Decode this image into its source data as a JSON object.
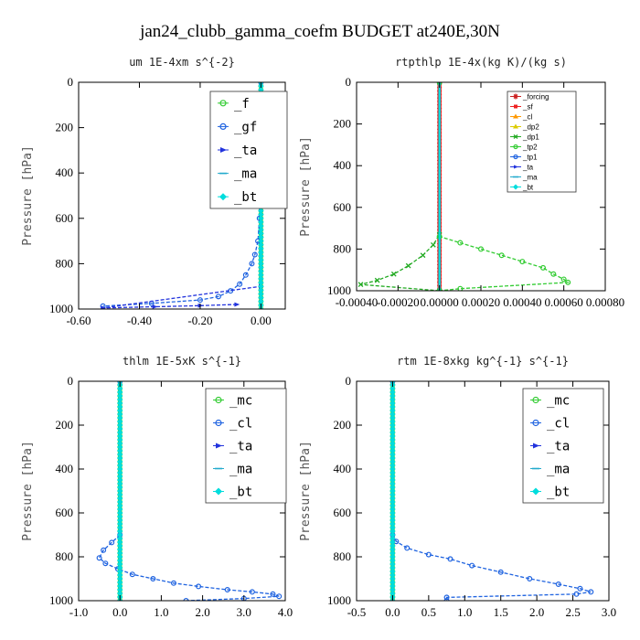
{
  "figure": {
    "title": "jan24_clubb_gamma_coefm  BUDGET at240E,30N"
  },
  "chart_data": [
    {
      "type": "line",
      "title": "um  1E-4xm s^{-2}",
      "ylabel": "Pressure [hPa]",
      "xlim": [
        -0.6,
        0.08
      ],
      "ylim": [
        1000,
        0
      ],
      "xticks": [
        -0.6,
        -0.4,
        -0.2,
        0.0
      ],
      "xtick_labels": [
        "-0.60",
        "-0.40",
        "-0.20",
        "0.00"
      ],
      "yticks": [
        0,
        200,
        400,
        600,
        800,
        1000
      ],
      "legend_position": "top-right",
      "legend_size": "large",
      "series": [
        {
          "name": "_f",
          "color": "#33cc33",
          "marker": "circle",
          "x": [
            0,
            0,
            0,
            0,
            0,
            0,
            0,
            0,
            0,
            0,
            0
          ],
          "y": [
            0,
            100,
            200,
            300,
            400,
            500,
            600,
            700,
            800,
            900,
            1000
          ]
        },
        {
          "name": "_gf",
          "color": "#1f63e0",
          "marker": "circle",
          "x": [
            0,
            -0.005,
            -0.01,
            -0.02,
            -0.03,
            -0.05,
            -0.07,
            -0.1,
            -0.14,
            -0.2,
            -0.36,
            -0.52
          ],
          "y": [
            0,
            600,
            700,
            760,
            800,
            850,
            890,
            920,
            945,
            960,
            975,
            987
          ]
        },
        {
          "name": "_ta",
          "color": "#2233dd",
          "marker": "arrow",
          "x": [
            0,
            0,
            -0.52,
            -0.35,
            -0.2,
            -0.08
          ],
          "y": [
            0,
            900,
            995,
            990,
            985,
            980
          ]
        },
        {
          "name": "_ma",
          "color": "#22aacc",
          "marker": "dash",
          "x": [
            0,
            0
          ],
          "y": [
            0,
            1000
          ]
        },
        {
          "name": "_bt",
          "color": "#00dddd",
          "marker": "diamond",
          "x": [
            0,
            0,
            0,
            0,
            0,
            0,
            0,
            0,
            0,
            0,
            0
          ],
          "y": [
            0,
            100,
            200,
            300,
            400,
            500,
            600,
            700,
            800,
            900,
            1000
          ]
        }
      ]
    },
    {
      "type": "line",
      "title": "rtpthlp  1E-4x(kg K)/(kg s)",
      "ylabel": "Pressure [hPa]",
      "xlim": [
        -0.0004,
        0.0008
      ],
      "ylim": [
        1000,
        0
      ],
      "xticks": [
        -0.0004,
        -0.0002,
        0.0,
        0.0002,
        0.0004,
        0.0006,
        0.0008
      ],
      "xtick_labels": [
        "-0.00040",
        "-0.00020",
        "0.00000",
        "0.00020",
        "0.00040",
        "0.00060",
        "0.00080"
      ],
      "yticks": [
        0,
        200,
        400,
        600,
        800,
        1000
      ],
      "legend_position": "top-right",
      "legend_size": "small",
      "series": [
        {
          "name": "_forcing",
          "color": "#cc2222",
          "marker": "star",
          "x": [
            0,
            0,
            0,
            0,
            0,
            0,
            0,
            0,
            0,
            0,
            0
          ],
          "y": [
            0,
            100,
            200,
            300,
            400,
            500,
            600,
            700,
            800,
            900,
            1000
          ]
        },
        {
          "name": "_sf",
          "color": "#ee2222",
          "marker": "square",
          "x": [
            0,
            0,
            0,
            0,
            0,
            0,
            0,
            0,
            0,
            0,
            0
          ],
          "y": [
            0,
            100,
            200,
            300,
            400,
            500,
            600,
            700,
            800,
            900,
            1000
          ]
        },
        {
          "name": "_cl",
          "color": "#ff9900",
          "marker": "triangle",
          "x": [
            0,
            0
          ],
          "y": [
            0,
            1000
          ]
        },
        {
          "name": "_dp2",
          "color": "#ddcc00",
          "marker": "triangle",
          "x": [
            0,
            0
          ],
          "y": [
            0,
            1000
          ]
        },
        {
          "name": "_dp1",
          "color": "#22aa22",
          "marker": "cross",
          "x": [
            0,
            0,
            -3e-05,
            -8e-05,
            -0.00015,
            -0.00022,
            -0.0003,
            -0.00038,
            0.0
          ],
          "y": [
            0,
            730,
            780,
            830,
            880,
            920,
            950,
            970,
            1000
          ]
        },
        {
          "name": "_tp2",
          "color": "#33cc33",
          "marker": "circle",
          "x": [
            0,
            0,
            0.0001,
            0.0002,
            0.0003,
            0.0004,
            0.0005,
            0.00055,
            0.0006,
            0.00062,
            0.0001,
            0.0
          ],
          "y": [
            0,
            740,
            770,
            800,
            830,
            860,
            890,
            920,
            945,
            960,
            990,
            1000
          ]
        },
        {
          "name": "_tp1",
          "color": "#1f63e0",
          "marker": "circle",
          "x": [
            0,
            0
          ],
          "y": [
            0,
            1000
          ]
        },
        {
          "name": "_ta",
          "color": "#2233dd",
          "marker": "arrow",
          "x": [
            0,
            0
          ],
          "y": [
            0,
            1000
          ]
        },
        {
          "name": "_ma",
          "color": "#22aacc",
          "marker": "dash",
          "x": [
            0,
            0
          ],
          "y": [
            0,
            1000
          ]
        },
        {
          "name": "_bt",
          "color": "#00dddd",
          "marker": "diamond",
          "x": [
            0,
            0
          ],
          "y": [
            0,
            1000
          ]
        }
      ]
    },
    {
      "type": "line",
      "title": "thlm  1E-5xK s^{-1}",
      "ylabel": "Pressure [hPa]",
      "xlim": [
        -1.0,
        4.0
      ],
      "ylim": [
        1000,
        0
      ],
      "xticks": [
        -1.0,
        0.0,
        1.0,
        2.0,
        3.0,
        4.0
      ],
      "xtick_labels": [
        "-1.0",
        "0.0",
        "1.0",
        "2.0",
        "3.0",
        "4.0"
      ],
      "yticks": [
        0,
        200,
        400,
        600,
        800,
        1000
      ],
      "legend_position": "top-right",
      "legend_size": "large",
      "series": [
        {
          "name": "_mc",
          "color": "#33cc33",
          "marker": "circle",
          "x": [
            0,
            0,
            0,
            0,
            0,
            0,
            0,
            0,
            0,
            0,
            0
          ],
          "y": [
            0,
            100,
            200,
            300,
            400,
            500,
            600,
            700,
            800,
            900,
            1000
          ]
        },
        {
          "name": "_cl",
          "color": "#1f63e0",
          "marker": "circle",
          "x": [
            0,
            0,
            -0.2,
            -0.4,
            -0.5,
            -0.35,
            -0.05,
            0.3,
            0.8,
            1.3,
            1.9,
            2.6,
            3.2,
            3.7,
            3.85,
            3.0,
            1.6
          ],
          "y": [
            0,
            700,
            735,
            770,
            805,
            830,
            855,
            880,
            900,
            920,
            935,
            950,
            960,
            970,
            980,
            990,
            1000
          ]
        },
        {
          "name": "_ta",
          "color": "#2233dd",
          "marker": "arrow",
          "x": [
            0,
            0
          ],
          "y": [
            0,
            1000
          ]
        },
        {
          "name": "_ma",
          "color": "#22aacc",
          "marker": "dash",
          "x": [
            0,
            0
          ],
          "y": [
            0,
            1000
          ]
        },
        {
          "name": "_bt",
          "color": "#00dddd",
          "marker": "diamond",
          "x": [
            0,
            0,
            0,
            0,
            0,
            0,
            0,
            0,
            0,
            0,
            0
          ],
          "y": [
            0,
            100,
            200,
            300,
            400,
            500,
            600,
            700,
            800,
            900,
            1000
          ]
        }
      ]
    },
    {
      "type": "line",
      "title": "rtm  1E-8xkg kg^{-1} s^{-1}",
      "ylabel": "Pressure [hPa]",
      "xlim": [
        -0.5,
        3.0
      ],
      "ylim": [
        1000,
        0
      ],
      "xticks": [
        -0.5,
        0.0,
        0.5,
        1.0,
        1.5,
        2.0,
        2.5,
        3.0
      ],
      "xtick_labels": [
        "-0.5",
        "0.0",
        "0.5",
        "1.0",
        "1.5",
        "2.0",
        "2.5",
        "3.0"
      ],
      "yticks": [
        0,
        200,
        400,
        600,
        800,
        1000
      ],
      "legend_position": "top-right",
      "legend_size": "large",
      "series": [
        {
          "name": "_mc",
          "color": "#33cc33",
          "marker": "circle",
          "x": [
            0,
            0,
            0,
            0,
            0,
            0,
            0,
            0,
            0,
            0,
            0
          ],
          "y": [
            0,
            100,
            200,
            300,
            400,
            500,
            600,
            700,
            800,
            900,
            1000
          ]
        },
        {
          "name": "_cl",
          "color": "#1f63e0",
          "marker": "circle",
          "x": [
            0,
            0,
            0.05,
            0.2,
            0.5,
            0.8,
            1.1,
            1.5,
            1.9,
            2.3,
            2.6,
            2.75,
            2.55,
            0.75,
            0.75
          ],
          "y": [
            0,
            700,
            730,
            760,
            790,
            810,
            840,
            870,
            900,
            925,
            945,
            960,
            970,
            985,
            1000
          ]
        },
        {
          "name": "_ta",
          "color": "#2233dd",
          "marker": "arrow",
          "x": [
            0,
            0
          ],
          "y": [
            0,
            1000
          ]
        },
        {
          "name": "_ma",
          "color": "#22aacc",
          "marker": "dash",
          "x": [
            0,
            0
          ],
          "y": [
            0,
            1000
          ]
        },
        {
          "name": "_bt",
          "color": "#00dddd",
          "marker": "diamond",
          "x": [
            0,
            0,
            0,
            0,
            0,
            0,
            0,
            0,
            0,
            0,
            0
          ],
          "y": [
            0,
            100,
            200,
            300,
            400,
            500,
            600,
            700,
            800,
            900,
            1000
          ]
        }
      ]
    }
  ]
}
